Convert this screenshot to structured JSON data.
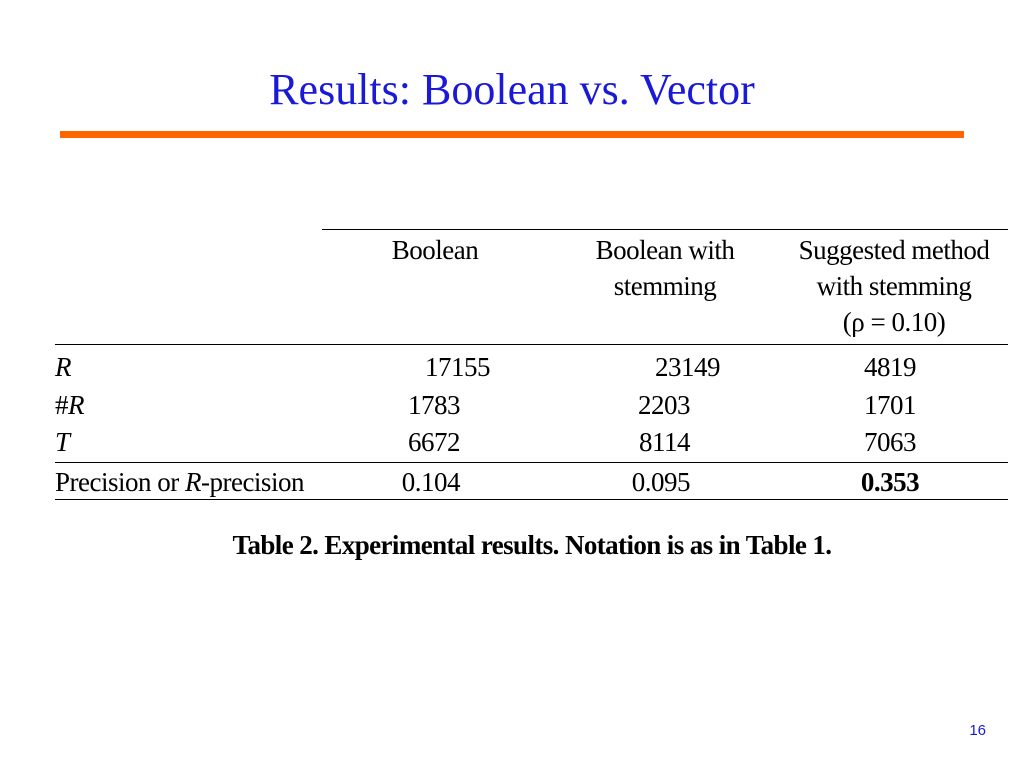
{
  "slide": {
    "title": "Results: Boolean vs. Vector",
    "accent_color": "#ff6600",
    "title_color": "#1a1ad6",
    "page_number": "16"
  },
  "table": {
    "headers": [
      [
        "Boolean"
      ],
      [
        "Boolean with",
        "stemming"
      ],
      [
        "Suggested method",
        "with stemming",
        "(ρ = 0.10)"
      ]
    ],
    "rows": [
      {
        "label_pre": "",
        "label_italic": "R",
        "label_post": "",
        "values": [
          "17155",
          "23149",
          "4819"
        ]
      },
      {
        "label_pre": "#",
        "label_italic": "R",
        "label_post": "",
        "values": [
          "1783",
          "2203",
          "1701"
        ]
      },
      {
        "label_pre": "",
        "label_italic": "T",
        "label_post": "",
        "values": [
          "6672",
          "8114",
          "7063"
        ]
      },
      {
        "label_pre": "Precision or ",
        "label_italic": "R",
        "label_post": "-precision",
        "values": [
          "0.104",
          "0.095",
          "0.353"
        ]
      }
    ],
    "caption": "Table 2. Experimental results. Notation is as in Table 1."
  }
}
